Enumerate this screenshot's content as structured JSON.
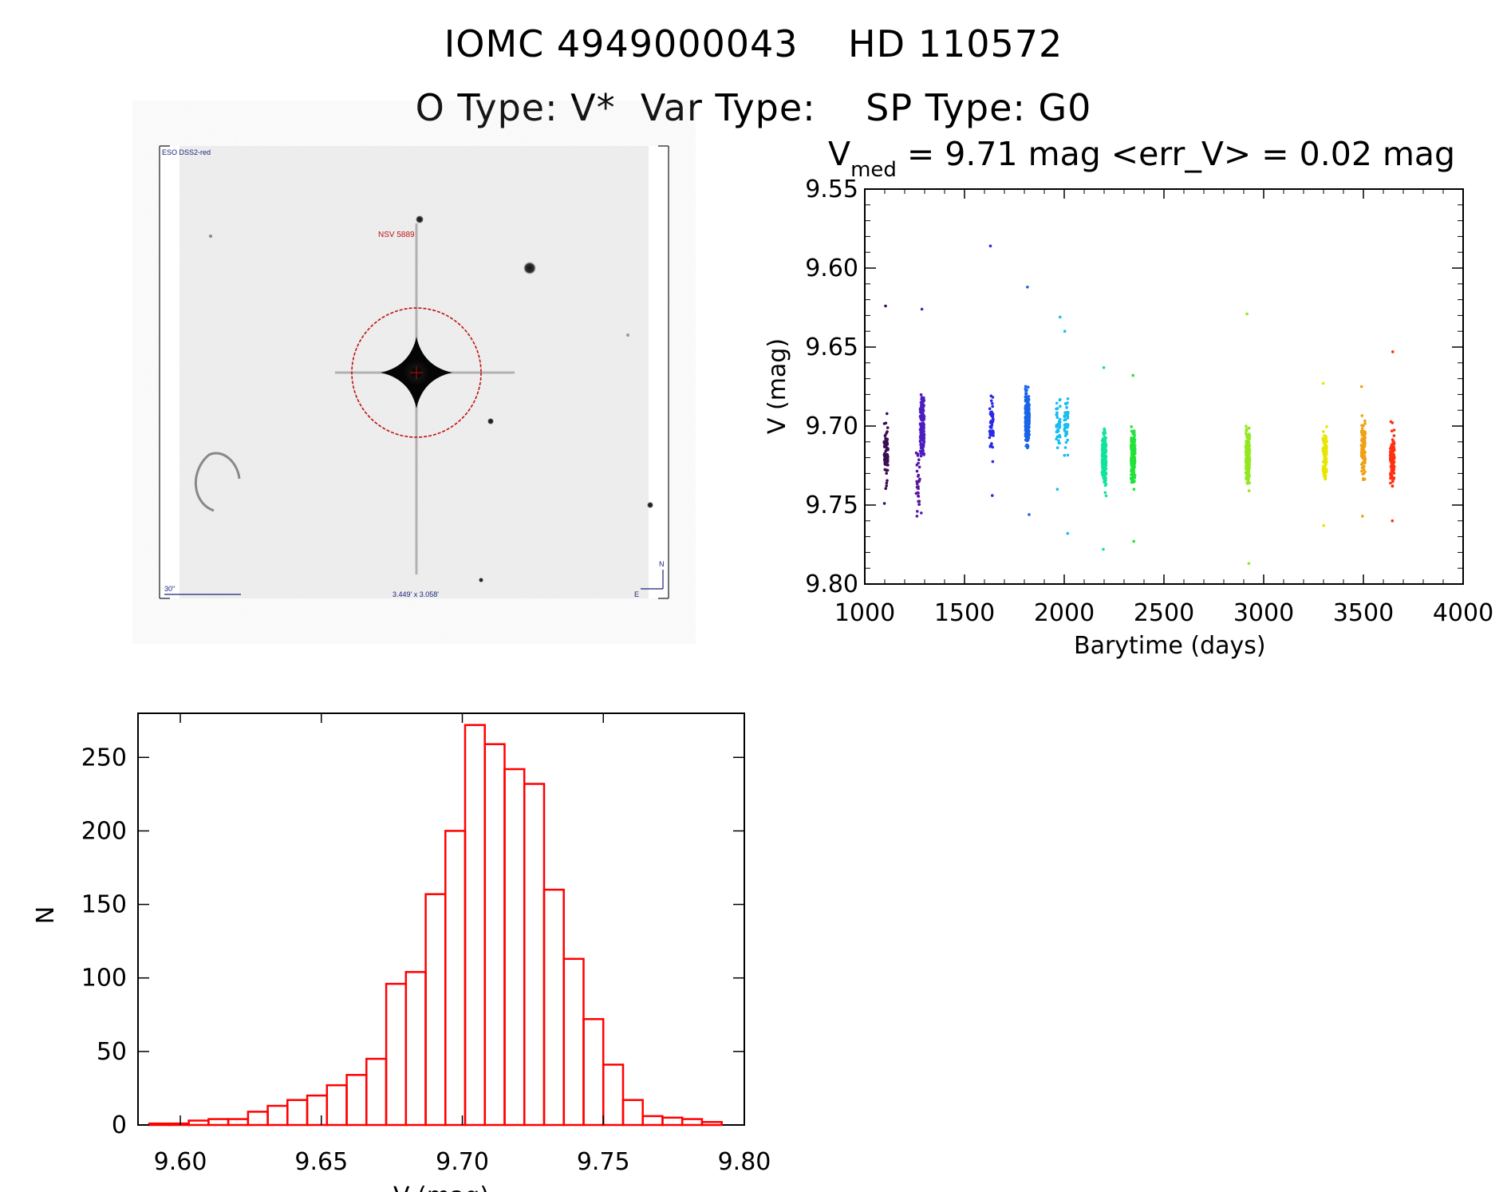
{
  "header": {
    "line1": "IOMC 4949000043    HD 110572",
    "line2": "O Type: V*  Var Type:    SP Type: G0"
  },
  "finder": {
    "survey": "ESO DSS2-red",
    "object_label": "NSV 5889",
    "scale_label": "30\"",
    "fov_label": "3.449' x 3.058'",
    "north": "N",
    "east": "E"
  },
  "chart_data": [
    {
      "type": "scatter",
      "title_symbol": "V",
      "title_subscript": "med",
      "title_rest": " = 9.71 mag <err_V> = 0.02 mag",
      "xlabel": "Barytime (days)",
      "ylabel": "V (mag)",
      "xlim": [
        1000,
        4000
      ],
      "ylim": [
        9.8,
        9.55
      ],
      "y_reversed": true,
      "xticks": [
        "1000",
        "1500",
        "2000",
        "2500",
        "3000",
        "3500",
        "4000"
      ],
      "yticks": [
        "9.55",
        "9.60",
        "9.65",
        "9.70",
        "9.75",
        "9.80"
      ],
      "groups": [
        {
          "x": 1107,
          "ymin": 9.624,
          "ymax": 9.749,
          "center": 9.716,
          "n": 70,
          "color": "#3a0d52"
        },
        {
          "x": 1267,
          "ymin": 9.717,
          "ymax": 9.757,
          "center": 9.735,
          "n": 30,
          "color": "#5a15a0"
        },
        {
          "x": 1288,
          "ymin": 9.626,
          "ymax": 9.755,
          "center": 9.7,
          "n": 170,
          "color": "#4b1ec0"
        },
        {
          "x": 1635,
          "ymin": 9.586,
          "ymax": 9.744,
          "center": 9.7,
          "n": 50,
          "color": "#2a2ae6"
        },
        {
          "x": 1815,
          "ymin": 9.612,
          "ymax": 9.756,
          "center": 9.695,
          "n": 220,
          "color": "#1a64e6"
        },
        {
          "x": 1970,
          "ymin": 9.631,
          "ymax": 9.74,
          "center": 9.7,
          "n": 40,
          "color": "#18bdf0"
        },
        {
          "x": 2010,
          "ymin": 9.64,
          "ymax": 9.768,
          "center": 9.7,
          "n": 40,
          "color": "#18bdf0"
        },
        {
          "x": 2200,
          "ymin": 9.663,
          "ymax": 9.778,
          "center": 9.72,
          "n": 190,
          "color": "#10e39a"
        },
        {
          "x": 2345,
          "ymin": 9.668,
          "ymax": 9.773,
          "center": 9.72,
          "n": 180,
          "color": "#22e23a"
        },
        {
          "x": 2920,
          "ymin": 9.629,
          "ymax": 9.787,
          "center": 9.72,
          "n": 210,
          "color": "#92e820"
        },
        {
          "x": 3307,
          "ymin": 9.673,
          "ymax": 9.763,
          "center": 9.72,
          "n": 100,
          "color": "#e6e600"
        },
        {
          "x": 3500,
          "ymin": 9.675,
          "ymax": 9.757,
          "center": 9.715,
          "n": 110,
          "color": "#f0a014"
        },
        {
          "x": 3645,
          "ymin": 9.653,
          "ymax": 9.76,
          "center": 9.72,
          "n": 120,
          "color": "#ff3010"
        }
      ]
    },
    {
      "type": "bar",
      "subtype": "histogram",
      "xlabel": "V (mag)",
      "ylabel": "N",
      "xlim": [
        9.585,
        9.8
      ],
      "ylim": [
        0,
        280
      ],
      "xticks": [
        "9.60",
        "9.65",
        "9.70",
        "9.75",
        "9.80"
      ],
      "yticks": [
        "0",
        "50",
        "100",
        "150",
        "200",
        "250"
      ],
      "bin_width": 0.007,
      "bin_start": 9.589,
      "counts": [
        1,
        1,
        3,
        4,
        4,
        9,
        13,
        17,
        20,
        27,
        34,
        45,
        96,
        104,
        157,
        200,
        272,
        259,
        242,
        232,
        160,
        113,
        72,
        41,
        17,
        6,
        5,
        4,
        2
      ],
      "color": "#ff0000"
    }
  ]
}
